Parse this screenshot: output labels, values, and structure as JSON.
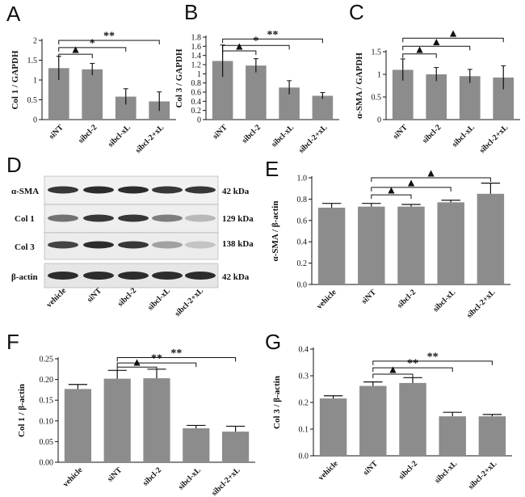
{
  "panel_letters": {
    "A": "A",
    "B": "B",
    "C": "C",
    "D": "D",
    "E": "E",
    "F": "F",
    "G": "G"
  },
  "blot": {
    "bands": [
      "α-SMA",
      "Col 1",
      "Col 3",
      "β-actin"
    ],
    "sizes": [
      "42 kDa",
      "129 kDa",
      "138 kDa",
      "42 kDa"
    ],
    "lanes": [
      "vehicle",
      "siNT",
      "sibcl-2",
      "sibcl-xL",
      "sibcl-2+xL"
    ]
  },
  "chart_data": [
    {
      "id": "A",
      "type": "bar",
      "style": "top",
      "ylabel": "Col 1 / GAPDH",
      "ylim": [
        0,
        2
      ],
      "yticks": [
        "0",
        "0.5",
        "1",
        "1.5",
        "2"
      ],
      "categories": [
        "siNT",
        "sibcl-2",
        "sibcl-xL",
        "sibcl-2+xL"
      ],
      "values": [
        1.3,
        1.27,
        0.58,
        0.46
      ],
      "errors": [
        0.3,
        0.15,
        0.2,
        0.24
      ],
      "brackets": [
        {
          "from": 0,
          "to": 1,
          "label": "▲",
          "y": 1.65
        },
        {
          "from": 0,
          "to": 2,
          "label": "*",
          "y": 1.82
        },
        {
          "from": 0,
          "to": 3,
          "label": "**",
          "y": 2.0
        }
      ]
    },
    {
      "id": "B",
      "type": "bar",
      "style": "top",
      "ylabel": "Col 3 / GAPDH",
      "ylim": [
        0,
        1.8
      ],
      "yticks": [
        "0",
        "0.2",
        "0.4",
        "0.6",
        "0.8",
        "1",
        "1.2",
        "1.4",
        "1.6",
        "1.8"
      ],
      "categories": [
        "siNT",
        "sibcl-2",
        "sibcl-xL",
        "sibcl-2+xL"
      ],
      "values": [
        1.28,
        1.18,
        0.7,
        0.52
      ],
      "errors": [
        0.35,
        0.15,
        0.15,
        0.07
      ],
      "brackets": [
        {
          "from": 0,
          "to": 1,
          "label": "▲",
          "y": 1.5
        },
        {
          "from": 0,
          "to": 2,
          "label": "*",
          "y": 1.62
        },
        {
          "from": 0,
          "to": 3,
          "label": "**",
          "y": 1.76
        }
      ]
    },
    {
      "id": "C",
      "type": "bar",
      "style": "top",
      "ylabel": "α-SMA / GAPDH",
      "ylim": [
        0,
        1.5
      ],
      "yticks": [
        "0",
        "0.5",
        "1",
        "1.5"
      ],
      "categories": [
        "siNT",
        "sibcl-2",
        "sibcl-xL",
        "sibcl-2+xL"
      ],
      "values": [
        1.1,
        1.0,
        0.96,
        0.93
      ],
      "errors": [
        0.24,
        0.15,
        0.15,
        0.26
      ],
      "brackets": [
        {
          "from": 0,
          "to": 1,
          "label": "▲",
          "y": 1.45
        },
        {
          "from": 0,
          "to": 2,
          "label": "▲",
          "y": 1.62
        },
        {
          "from": 0,
          "to": 3,
          "label": "▲",
          "y": 1.8
        }
      ]
    },
    {
      "id": "E",
      "type": "bar",
      "style": "bottom",
      "ylabel": "α-SMA / β-actin",
      "ylim": [
        0,
        1.0
      ],
      "yticks": [
        "0.0",
        "0.2",
        "0.4",
        "0.6",
        "0.8",
        "1.0"
      ],
      "categories": [
        "vehicle",
        "siNT",
        "sibcl-2",
        "sibcl-xL",
        "sibcl-2+xL"
      ],
      "values": [
        0.72,
        0.73,
        0.73,
        0.77,
        0.85
      ],
      "errors": [
        0.04,
        0.03,
        0.02,
        0.02,
        0.1
      ],
      "brackets": [
        {
          "from": 1,
          "to": 2,
          "label": "▲",
          "y": 0.84
        },
        {
          "from": 1,
          "to": 3,
          "label": "▲",
          "y": 0.91
        },
        {
          "from": 1,
          "to": 4,
          "label": "▲",
          "y": 1.0
        }
      ]
    },
    {
      "id": "F",
      "type": "bar",
      "style": "bottom",
      "ylabel": "Col 1 / β-actin",
      "ylim": [
        0,
        0.25
      ],
      "yticks": [
        "0.00",
        "0.05",
        "0.10",
        "0.15",
        "0.20",
        "0.25"
      ],
      "categories": [
        "vehicle",
        "siNT",
        "sibcl-2",
        "sibcl-xL",
        "sibcl-2+xL"
      ],
      "values": [
        0.177,
        0.202,
        0.203,
        0.082,
        0.074
      ],
      "errors": [
        0.011,
        0.02,
        0.022,
        0.007,
        0.013
      ],
      "brackets": [
        {
          "from": 1,
          "to": 2,
          "label": "▲",
          "y": 0.23
        },
        {
          "from": 1,
          "to": 3,
          "label": "**",
          "y": 0.24
        },
        {
          "from": 1,
          "to": 4,
          "label": "**",
          "y": 0.253
        }
      ]
    },
    {
      "id": "G",
      "type": "bar",
      "style": "bottom",
      "ylabel": "Col 3 / β-actin",
      "ylim": [
        0,
        0.4
      ],
      "yticks": [
        "0.0",
        "0.1",
        "0.2",
        "0.3",
        "0.4"
      ],
      "categories": [
        "vehicle",
        "siNT",
        "sibcl-2",
        "sibcl-xL",
        "sibcl-2+xL"
      ],
      "values": [
        0.215,
        0.262,
        0.273,
        0.148,
        0.148
      ],
      "errors": [
        0.01,
        0.015,
        0.02,
        0.015,
        0.007
      ],
      "brackets": [
        {
          "from": 1,
          "to": 2,
          "label": "▲",
          "y": 0.306
        },
        {
          "from": 1,
          "to": 3,
          "label": "**",
          "y": 0.33
        },
        {
          "from": 1,
          "to": 4,
          "label": "**",
          "y": 0.355
        }
      ]
    }
  ]
}
